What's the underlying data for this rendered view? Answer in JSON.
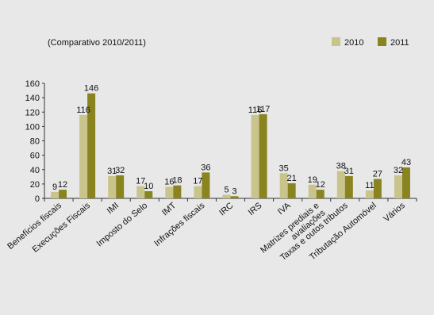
{
  "chart_data": {
    "type": "bar",
    "title": "(Comparativo 2010/2011)",
    "xlabel": "",
    "ylabel": "",
    "ylim": [
      0,
      160
    ],
    "yticks": [
      0,
      20,
      40,
      60,
      80,
      100,
      120,
      140,
      160
    ],
    "grid": false,
    "legend_position": "top-right",
    "categories": [
      "Benefícios fiscais",
      "Execuções Fiscais",
      "IMI",
      "Imposto do Selo",
      "IMT",
      "Infrações fiscais",
      "IRC",
      "IRS",
      "IVA",
      "Matrizes prediais e avaliações",
      "Taxas e outos tributos",
      "Tributação Automóvel",
      "Vários"
    ],
    "series": [
      {
        "name": "2010",
        "color": "#c8c48c",
        "values": [
          9,
          116,
          31,
          17,
          16,
          17,
          5,
          116,
          35,
          19,
          38,
          11,
          32
        ]
      },
      {
        "name": "2011",
        "color": "#8a8420",
        "values": [
          12,
          146,
          32,
          10,
          18,
          36,
          3,
          117,
          21,
          12,
          31,
          27,
          43
        ]
      }
    ]
  }
}
